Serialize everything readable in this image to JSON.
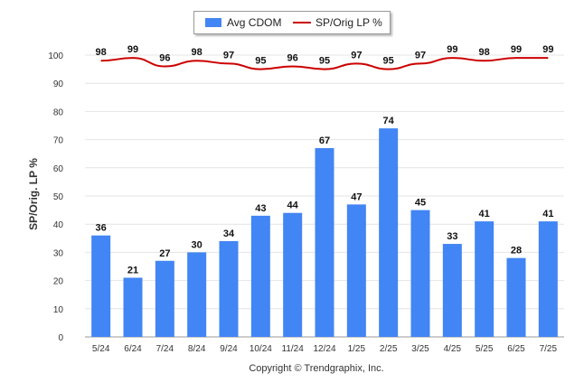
{
  "legend": {
    "bar_label": "Avg CDOM",
    "line_label": "SP/Orig LP %"
  },
  "copyright": "Copyright © Trendgraphix, Inc.",
  "chart_data": {
    "type": "bar",
    "categories": [
      "5/24",
      "6/24",
      "7/24",
      "8/24",
      "9/24",
      "10/24",
      "11/24",
      "12/24",
      "1/25",
      "2/25",
      "3/25",
      "4/25",
      "5/25",
      "6/25",
      "7/25"
    ],
    "ylabel": "SP/Orig. LP %",
    "ylim": [
      0,
      100
    ],
    "yticks": [
      0,
      10,
      20,
      30,
      40,
      50,
      60,
      70,
      80,
      90,
      100
    ],
    "grid": true,
    "legend_position": "top",
    "series": [
      {
        "name": "Avg CDOM",
        "type": "bar",
        "color": "#4285f4",
        "values": [
          36,
          21,
          27,
          30,
          34,
          43,
          44,
          67,
          47,
          74,
          45,
          33,
          41,
          28,
          41
        ]
      },
      {
        "name": "SP/Orig LP %",
        "type": "line",
        "color": "#cc0000",
        "values": [
          98,
          99,
          96,
          98,
          97,
          95,
          96,
          95,
          97,
          95,
          97,
          99,
          98,
          99,
          99
        ]
      }
    ]
  }
}
